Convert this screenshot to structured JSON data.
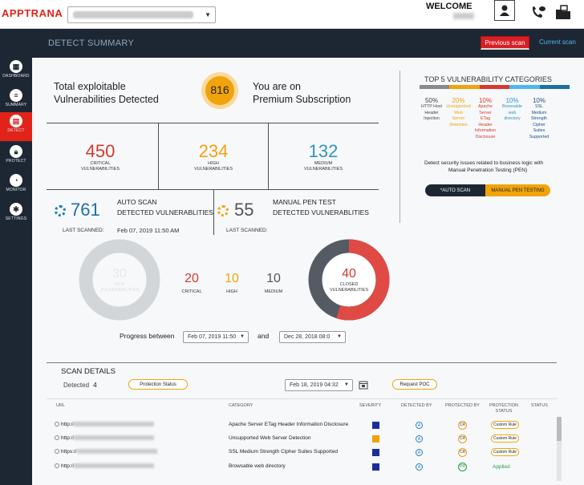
{
  "app": {
    "logo_part1": "APP",
    "logo_part2": "TRANA"
  },
  "header": {
    "welcome": "WELCOME"
  },
  "sidebar": {
    "items": [
      {
        "label": "DASHBOARD",
        "icon": "dashboard-icon"
      },
      {
        "label": "SUMMARY",
        "icon": "summary-icon"
      },
      {
        "label": "DETECT",
        "icon": "detect-icon",
        "active": true
      },
      {
        "label": "PROTECT",
        "icon": "protect-icon"
      },
      {
        "label": "MONITOR",
        "icon": "monitor-icon"
      },
      {
        "label": "SETTINGS",
        "icon": "settings-icon"
      }
    ]
  },
  "page": {
    "title": "DETECT SUMMARY",
    "prev_scan": "Previous scan",
    "curr_scan": "Current scan"
  },
  "summary": {
    "total_label_1": "Total exploitable",
    "total_label_2": "Vulnerabilities Detected",
    "total_value": "816",
    "sub_line_1": "You are on",
    "sub_line_2": "Premium Subscription"
  },
  "severity": {
    "critical": {
      "value": "450",
      "label_1": "CRITICAL",
      "label_2": "VULNERABILITIES",
      "color": "#d6392f"
    },
    "high": {
      "value": "234",
      "label_1": "HIGH",
      "label_2": "VULNERABILITIES",
      "color": "#f0a30b"
    },
    "medium": {
      "value": "132",
      "label_1": "MEDIUM",
      "label_2": "VULNERABILITIES",
      "color": "#2d93c8"
    }
  },
  "auto_scan": {
    "value": "761",
    "title_1": "AUTO SCAN",
    "title_2": "DETECTED VULNERABLITIES",
    "last_label": "LAST SCANNED:",
    "last_value": "Feb 07, 2019 11:50 AM"
  },
  "pen_test": {
    "value": "55",
    "title_1": "MANUAL PEN TEST",
    "title_2": "DETECTED VULNERABLITIES",
    "last_label": "LAST SCANNED:"
  },
  "donut_auto": {
    "value": "30",
    "label_1": "NEW",
    "label_2": "VULNERABILITIES"
  },
  "breakdown": {
    "critical": {
      "value": "20",
      "label": "CRITICAL"
    },
    "high": {
      "value": "10",
      "label": "HIGH"
    },
    "medium": {
      "value": "10",
      "label": "MEDIUM"
    }
  },
  "donut_pen": {
    "value": "40",
    "label_1": "CLOSED",
    "label_2": "VULNERABILITIES",
    "closed_fraction": 0.55
  },
  "progress": {
    "label": "Progress between",
    "from": "Feb 07, 2019 11:50",
    "and": "and",
    "to": "Dec 28, 2018 08:0"
  },
  "top5": {
    "title": "TOP 5 VULNERABILITY CATEGORIES",
    "bar_colors": [
      "#8a8a8a",
      "#f0a30b",
      "#d6392f",
      "#4eb6f2",
      "#1f6fa6"
    ],
    "items": [
      {
        "pct": "50%",
        "lines": [
          "HTTP Host",
          "Header",
          "Injection"
        ],
        "color": "#444"
      },
      {
        "pct": "20%",
        "lines": [
          "Unsupported",
          "Web",
          "Server",
          "Detection"
        ],
        "color": "#f0a30b"
      },
      {
        "pct": "10%",
        "lines": [
          "Apache",
          "Server",
          "ETag",
          "Header",
          "Information",
          "Disclosure"
        ],
        "color": "#d6392f"
      },
      {
        "pct": "10%",
        "lines": [
          "Browsable",
          "web",
          "directory"
        ],
        "color": "#2d93c8"
      },
      {
        "pct": "10%",
        "lines": [
          "SSL",
          "Medium",
          "Strength",
          "Cipher",
          "Suites",
          "Supported"
        ],
        "color": "#1f4f86"
      }
    ],
    "note_1": "Detect security issues related to business logic with",
    "note_2": "Manual Penetration Testing (PEN)",
    "toggle_auto": "*AUTO SCAN",
    "toggle_manual": "MANUAL PEN TESTING"
  },
  "scan": {
    "title": "SCAN DETAILS",
    "detected_label": "Detected",
    "detected_value": "4",
    "protection_status_btn": "Protection Status",
    "date": "Feb 18, 2019 04:32",
    "request_poc": "Request POC",
    "columns": [
      "URL",
      "CATEGORY",
      "SEVERITY",
      "DETECTED BY",
      "PROTECTED BY",
      "PROTECTION STATUS",
      "STATUS"
    ],
    "rows": [
      {
        "url_prefix": "http://",
        "category": "Apache Server ETag Header Information Disclosure",
        "severity_color": "#1a2e9a",
        "protected": "CR",
        "status": "Custom Rule"
      },
      {
        "url_prefix": "http://",
        "category": "Unsupported Web Server Detection",
        "severity_color": "#f0a30b",
        "protected": "CR",
        "status": "Custom Rule"
      },
      {
        "url_prefix": "https://",
        "category": "SSL Medium Strength Cipher Suites Supported",
        "severity_color": "#1a2e9a",
        "protected": "CR",
        "status": "Custom Rule"
      },
      {
        "url_prefix": "http://",
        "category": "Browsable web directory",
        "severity_color": "#1a2e9a",
        "protected": "PR",
        "status": "Applied"
      }
    ]
  }
}
